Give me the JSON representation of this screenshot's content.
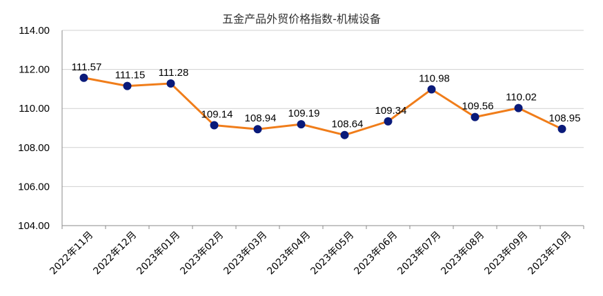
{
  "chart_data": {
    "type": "line",
    "title": "五金产品外贸价格指数-机械设备",
    "xlabel": "",
    "ylabel": "",
    "ylim": [
      104,
      114
    ],
    "yticks": [
      "104.00",
      "106.00",
      "108.00",
      "110.00",
      "112.00",
      "114.00"
    ],
    "categories": [
      "2022年11月",
      "2022年12月",
      "2023年01月",
      "2023年02月",
      "2023年03月",
      "2023年04月",
      "2023年05月",
      "2023年06月",
      "2023年07月",
      "2023年08月",
      "2023年09月",
      "2023年10月"
    ],
    "series": [
      {
        "values": [
          111.57,
          111.15,
          111.28,
          109.14,
          108.94,
          109.19,
          108.64,
          109.34,
          110.98,
          109.56,
          110.02,
          108.95
        ],
        "labels": [
          "111.57",
          "111.15",
          "111.28",
          "109.14",
          "108.94",
          "109.19",
          "108.64",
          "109.34",
          "110.98",
          "109.56",
          "110.02",
          "108.95"
        ],
        "line_color": "#f07d1a",
        "marker_color": "#0a1a7a"
      }
    ],
    "grid": "horizontal",
    "legend": "none",
    "axis_color": "#888888",
    "grid_color": "#d0d0d0"
  }
}
